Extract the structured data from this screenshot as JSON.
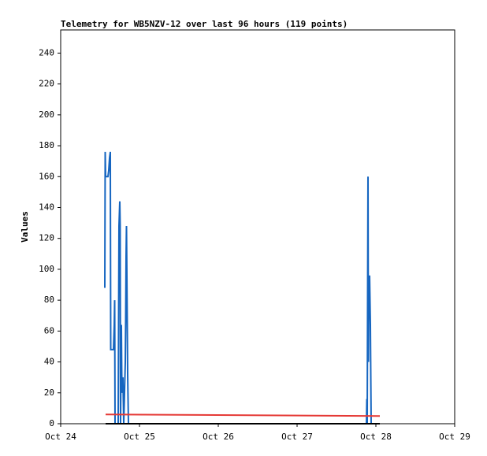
{
  "chart_data": {
    "type": "line",
    "title": "Telemetry for WB5NZV-12 over last 96 hours (119 points)",
    "y_label": "Values",
    "xlim": [
      24,
      29
    ],
    "xticks": [
      {
        "value": 24,
        "label": "Oct 24"
      },
      {
        "value": 25,
        "label": "Oct 25"
      },
      {
        "value": 26,
        "label": "Oct 26"
      },
      {
        "value": 27,
        "label": "Oct 27"
      },
      {
        "value": 28,
        "label": "Oct 28"
      },
      {
        "value": 29,
        "label": "Oct 29"
      }
    ],
    "ylim": [
      0,
      255
    ],
    "yticks": [
      0,
      20,
      40,
      60,
      80,
      100,
      120,
      140,
      160,
      180,
      200,
      220,
      240
    ],
    "series": [
      {
        "color": "#1565c0",
        "x": [
          24.56,
          24.565,
          24.57,
          24.6,
          24.61,
          24.62,
          24.63,
          24.635,
          24.67,
          24.68,
          24.685,
          24.69,
          24.73,
          24.74,
          24.75,
          24.755,
          24.76,
          24.77,
          24.775,
          24.78,
          24.79,
          24.8,
          24.82,
          24.825,
          24.83,
          24.835,
          24.84,
          24.845,
          24.85,
          24.86,
          27.88,
          27.885,
          27.89,
          27.9,
          27.905,
          27.91,
          27.92,
          27.93,
          27.94,
          28.05
        ],
        "values": [
          88,
          176,
          160,
          160,
          164,
          172,
          176,
          48,
          48,
          64,
          80,
          0,
          0,
          128,
          144,
          128,
          0,
          64,
          32,
          20,
          30,
          0,
          40,
          68,
          108,
          128,
          96,
          64,
          32,
          0,
          0,
          16,
          0,
          160,
          40,
          80,
          96,
          64,
          0,
          0
        ]
      },
      {
        "color": "#e53935",
        "x": [
          24.57,
          28.05
        ],
        "values": [
          6,
          5
        ]
      },
      {
        "color": "#000000",
        "x": [
          24.57,
          28.05
        ],
        "values": [
          0,
          0
        ]
      }
    ]
  }
}
